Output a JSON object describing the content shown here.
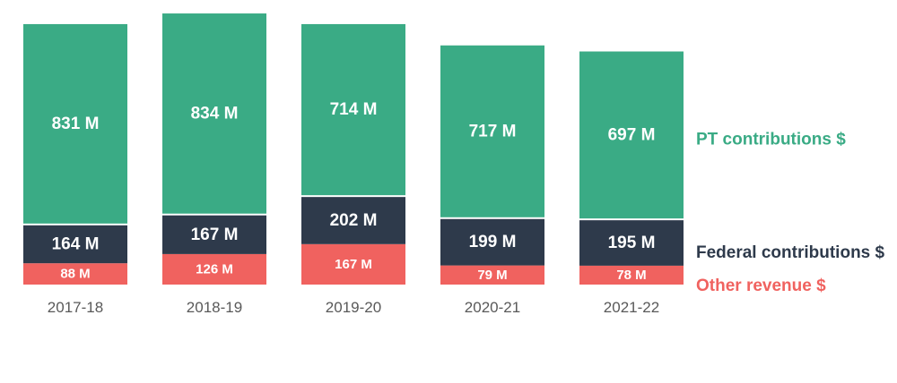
{
  "chart_data": {
    "type": "bar",
    "stacked": true,
    "categories": [
      "2017-18",
      "2018-19",
      "2019-20",
      "2020-21",
      "2021-22"
    ],
    "series": [
      {
        "name": "Other revenue $",
        "values": [
          88,
          126,
          167,
          79,
          78
        ],
        "labels": [
          "88 M",
          "126 M",
          "167 M",
          "79 M",
          "78 M"
        ],
        "color": "#f0625f"
      },
      {
        "name": "Federal contributions $",
        "values": [
          164,
          167,
          202,
          199,
          195
        ],
        "labels": [
          "164 M",
          "167 M",
          "202 M",
          "199 M",
          "195 M"
        ],
        "color": "#2e3a4b"
      },
      {
        "name": "PT contributions $",
        "values": [
          831,
          834,
          714,
          717,
          697
        ],
        "labels": [
          "831 M",
          "834 M",
          "714 M",
          "717 M",
          "697 M"
        ],
        "color": "#3aab85"
      }
    ],
    "legend_placement": "right",
    "grid": false
  }
}
